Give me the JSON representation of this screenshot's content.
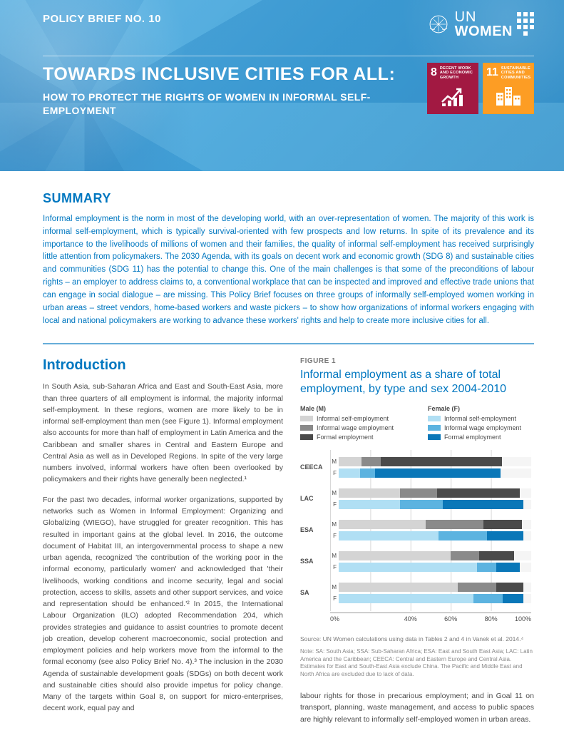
{
  "header": {
    "policy_tag": "POLICY BRIEF NO. 10",
    "logo": {
      "un": "UN",
      "women": "WOMEN"
    },
    "title": "TOWARDS INCLUSIVE CITIES FOR ALL:",
    "subtitle": "HOW TO PROTECT THE RIGHTS OF WOMEN IN INFORMAL SELF-EMPLOYMENT",
    "sdg8": {
      "num": "8",
      "label": "DECENT WORK AND ECONOMIC GROWTH",
      "bg": "#a21942"
    },
    "sdg11": {
      "num": "11",
      "label": "SUSTAINABLE CITIES AND COMMUNITIES",
      "bg": "#fd9d24"
    }
  },
  "summary": {
    "heading": "SUMMARY",
    "text": "Informal employment is the norm in most of the developing world, with an over-representation of women. The majority of this work is informal self-employment, which is typically survival-oriented with few prospects and low returns. In spite of its prevalence and its importance to the livelihoods of millions of women and their families, the quality of informal self-employment has received surprisingly little attention from policymakers. The 2030 Agenda, with its goals on decent work and economic growth (SDG 8) and sustainable cities and communities (SDG 11) has the potential to change this. One of the main challenges is that some of the preconditions of labour rights – an employer to address claims to, a conventional workplace that can be inspected and improved and effective trade unions that can engage in social dialogue – are missing. This Policy Brief focuses on three groups of informally self-employed women working in urban areas – street vendors, home-based workers and waste pickers – to show how organizations of informal workers engaging with local and national policymakers are working to advance these workers' rights and help to create more inclusive cities for all."
  },
  "intro": {
    "heading": "Introduction",
    "p1": "In South Asia, sub-Saharan Africa and East and South-East Asia, more than three quarters of all employment is informal, the majority informal self-employment. In these regions, women are more likely to be in informal self-employment than men (see Figure 1). Informal employment also accounts for more than half of employment in Latin America and the Caribbean and smaller shares in Central and Eastern Europe and Central Asia as well as in Developed Regions. In spite of the very large numbers involved, informal workers have often been overlooked by policymakers and their rights have generally been neglected.¹",
    "p2": "For the past two decades, informal worker organizations, supported by networks such as Women in Informal Employment: Organizing and Globalizing (WIEGO), have struggled for greater recognition. This has resulted in important gains at the global level. In 2016, the outcome document of Habitat III, an intergovernmental process to shape a new urban agenda, recognized 'the contribution of the working poor in the informal economy, particularly women' and acknowledged that 'their livelihoods, working conditions and income security, legal and social protection, access to skills, assets and other support services, and voice and representation should be enhanced.'² In 2015, the International Labour Organization (ILO) adopted Recommendation 204, which provides strategies and guidance to assist countries to promote decent job creation, develop coherent macroeconomic, social protection and employment policies and help workers move from the informal to the formal economy (see also Policy Brief No. 4).³ The inclusion in the 2030 Agenda of sustainable development goals (SDGs) on both decent work and sustainable cities should also provide impetus for policy change. Many of the targets within Goal 8, on support for micro-enterprises, decent work, equal pay and",
    "p3": "labour rights for those in precarious employment; and in Goal 11 on transport, planning, waste management, and access to public spaces are highly relevant to informally self-employed women in urban areas."
  },
  "figure": {
    "label": "FIGURE 1",
    "title": "Informal employment as a share of total employment, by type and sex 2004-2010",
    "legend": {
      "male_head": "Male (M)",
      "female_head": "Female (F)",
      "cats": [
        "Informal self-employment",
        "Informal wage employment",
        "Formal employment"
      ]
    },
    "colors": {
      "m_ise": "#d4d4d4",
      "m_iwe": "#8a8a8a",
      "m_fe": "#4a4a4a",
      "f_ise": "#b0dff4",
      "f_iwe": "#5cb3e0",
      "f_fe": "#0a77b8",
      "grid": "#d8d8d8",
      "bar_bg": "#f5f5f5"
    },
    "regions": [
      {
        "code": "CEECA",
        "m": {
          "ise": 12,
          "iwe": 10,
          "fe": 63
        },
        "f": {
          "ise": 11,
          "iwe": 8,
          "fe": 65
        }
      },
      {
        "code": "LAC",
        "m": {
          "ise": 32,
          "iwe": 19,
          "fe": 43
        },
        "f": {
          "ise": 32,
          "iwe": 22,
          "fe": 42
        }
      },
      {
        "code": "ESA",
        "m": {
          "ise": 45,
          "iwe": 30,
          "fe": 20
        },
        "f": {
          "ise": 52,
          "iwe": 25,
          "fe": 19
        }
      },
      {
        "code": "SSA",
        "m": {
          "ise": 58,
          "iwe": 15,
          "fe": 18
        },
        "f": {
          "ise": 72,
          "iwe": 10,
          "fe": 12
        }
      },
      {
        "code": "SA",
        "m": {
          "ise": 62,
          "iwe": 20,
          "fe": 14
        },
        "f": {
          "ise": 70,
          "iwe": 15,
          "fe": 11
        }
      }
    ],
    "xticks": [
      "0%",
      "40%",
      "60%",
      "80%",
      "100%"
    ],
    "source": "Source: UN Women calculations using data in Tables 2 and 4 in Vanek et al. 2014.⁴",
    "note": "Note: SA: South Asia; SSA: Sub-Saharan Africa; ESA: East and South East Asia; LAC: Latin America and the Caribbean; CEECA: Central and Eastern Europe and Central Asia. Estimates for East and South-East Asia exclude China. The Pacific and Middle East and North Africa are excluded due to lack of data."
  },
  "style": {
    "accent": "#0077c0",
    "body_color": "#4a4a4a",
    "header_gradient": [
      "#5eb3e4",
      "#3a9bd4",
      "#2d8ac4"
    ]
  }
}
